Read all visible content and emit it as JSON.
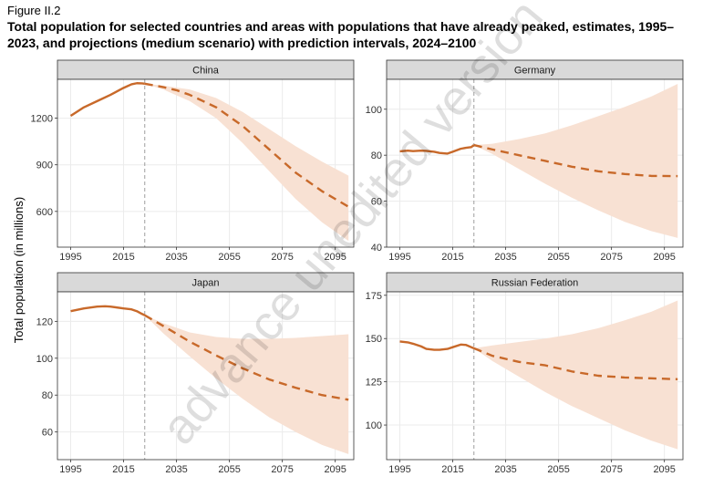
{
  "figure_label": "Figure II.2",
  "title": "Total population for selected countries and areas with populations that have already peaked, estimates, 1995–2023, and projections (medium scenario) with prediction intervals, 2024–2100",
  "watermark": "advance unedited version",
  "colors": {
    "line": "#c8692a",
    "band": "#f8e1d3",
    "strip": "#d9d9d9",
    "grid": "#ebebeb"
  },
  "chart_data": {
    "type": "line",
    "ylabel": "Total population (in millions)",
    "projection_start": 2023,
    "panels": [
      {
        "name": "China",
        "xlim": [
          1990,
          2102
        ],
        "ylim": [
          370,
          1450
        ],
        "xticks": [
          1995,
          2015,
          2035,
          2055,
          2075,
          2095
        ],
        "yticks": [
          600,
          900,
          1200
        ],
        "estimates": {
          "x": [
            1995,
            2000,
            2005,
            2010,
            2015,
            2018,
            2020,
            2022,
            2023
          ],
          "y": [
            1215,
            1270,
            1310,
            1350,
            1395,
            1418,
            1425,
            1424,
            1422
          ]
        },
        "projection": {
          "x": [
            2023,
            2030,
            2035,
            2040,
            2050,
            2060,
            2070,
            2080,
            2090,
            2100
          ],
          "y": [
            1422,
            1400,
            1380,
            1350,
            1270,
            1150,
            1000,
            850,
            730,
            630
          ]
        },
        "lower": {
          "x": [
            2023,
            2030,
            2040,
            2050,
            2060,
            2070,
            2080,
            2090,
            2100
          ],
          "y": [
            1422,
            1385,
            1310,
            1200,
            1040,
            860,
            680,
            530,
            410
          ]
        },
        "upper": {
          "x": [
            2023,
            2030,
            2040,
            2050,
            2060,
            2070,
            2080,
            2090,
            2100
          ],
          "y": [
            1422,
            1410,
            1385,
            1330,
            1240,
            1130,
            1020,
            920,
            830
          ]
        }
      },
      {
        "name": "Germany",
        "xlim": [
          1990,
          2102
        ],
        "ylim": [
          40,
          113
        ],
        "xticks": [
          1995,
          2015,
          2035,
          2055,
          2075,
          2095
        ],
        "yticks": [
          40,
          60,
          80,
          100
        ],
        "estimates": {
          "x": [
            1995,
            1998,
            2000,
            2003,
            2005,
            2008,
            2010,
            2013,
            2015,
            2018,
            2020,
            2022,
            2023
          ],
          "y": [
            81.7,
            82.0,
            81.8,
            82.0,
            81.9,
            81.5,
            81.0,
            80.7,
            81.5,
            82.8,
            83.2,
            83.5,
            84.4
          ]
        },
        "projection": {
          "x": [
            2023,
            2030,
            2040,
            2050,
            2060,
            2070,
            2080,
            2090,
            2100
          ],
          "y": [
            84.4,
            82.5,
            80.0,
            77.5,
            75.0,
            73.0,
            71.8,
            71.0,
            70.9
          ]
        },
        "lower": {
          "x": [
            2023,
            2030,
            2040,
            2050,
            2060,
            2070,
            2080,
            2090,
            2100
          ],
          "y": [
            84.4,
            80.5,
            74.0,
            67.5,
            61.5,
            56.0,
            51.0,
            47.0,
            44.0
          ]
        },
        "upper": {
          "x": [
            2023,
            2030,
            2040,
            2050,
            2060,
            2070,
            2080,
            2090,
            2100
          ],
          "y": [
            84.4,
            85.0,
            87.0,
            89.5,
            93.0,
            97.0,
            101.0,
            105.5,
            111.0
          ]
        }
      },
      {
        "name": "Japan",
        "xlim": [
          1990,
          2102
        ],
        "ylim": [
          45,
          136
        ],
        "xticks": [
          1995,
          2015,
          2035,
          2055,
          2075,
          2095
        ],
        "yticks": [
          60,
          80,
          100,
          120
        ],
        "estimates": {
          "x": [
            1995,
            2000,
            2005,
            2008,
            2010,
            2015,
            2018,
            2020,
            2022,
            2023
          ],
          "y": [
            125.5,
            127.0,
            128.0,
            128.2,
            128.0,
            127.0,
            126.5,
            125.5,
            124.0,
            123.3
          ]
        },
        "projection": {
          "x": [
            2023,
            2030,
            2040,
            2050,
            2060,
            2070,
            2080,
            2090,
            2100
          ],
          "y": [
            123.3,
            117.5,
            109.0,
            101.5,
            94.5,
            88.5,
            84.0,
            80.0,
            77.5
          ]
        },
        "lower": {
          "x": [
            2023,
            2030,
            2040,
            2050,
            2060,
            2070,
            2080,
            2090,
            2100
          ],
          "y": [
            123.3,
            113.5,
            101.0,
            89.0,
            78.0,
            68.0,
            60.0,
            53.0,
            48.0
          ]
        },
        "upper": {
          "x": [
            2023,
            2030,
            2040,
            2050,
            2060,
            2070,
            2080,
            2090,
            2100
          ],
          "y": [
            123.3,
            119.0,
            114.0,
            111.5,
            110.5,
            110.5,
            111.0,
            112.0,
            113.0
          ]
        }
      },
      {
        "name": "Russian Federation",
        "xlim": [
          1990,
          2102
        ],
        "ylim": [
          80,
          177
        ],
        "xticks": [
          1995,
          2015,
          2035,
          2055,
          2075,
          2095
        ],
        "yticks": [
          100,
          125,
          150,
          175
        ],
        "estimates": {
          "x": [
            1995,
            1998,
            2000,
            2003,
            2005,
            2008,
            2010,
            2013,
            2015,
            2018,
            2020,
            2022,
            2023
          ],
          "y": [
            148.3,
            147.8,
            147.0,
            145.5,
            144.0,
            143.5,
            143.5,
            144.0,
            145.0,
            146.5,
            146.3,
            145.0,
            144.4
          ]
        },
        "projection": {
          "x": [
            2023,
            2030,
            2040,
            2050,
            2060,
            2070,
            2080,
            2090,
            2100
          ],
          "y": [
            144.4,
            140.0,
            136.5,
            134.5,
            131.0,
            128.5,
            127.5,
            127.0,
            126.5
          ]
        },
        "lower": {
          "x": [
            2023,
            2030,
            2040,
            2050,
            2060,
            2070,
            2080,
            2090,
            2100
          ],
          "y": [
            144.4,
            137.0,
            128.0,
            119.0,
            111.0,
            104.0,
            97.0,
            91.0,
            86.0
          ]
        },
        "upper": {
          "x": [
            2023,
            2030,
            2040,
            2050,
            2060,
            2070,
            2080,
            2090,
            2100
          ],
          "y": [
            144.4,
            146.0,
            148.0,
            150.0,
            152.5,
            156.0,
            160.5,
            165.5,
            172.0
          ]
        }
      }
    ]
  }
}
